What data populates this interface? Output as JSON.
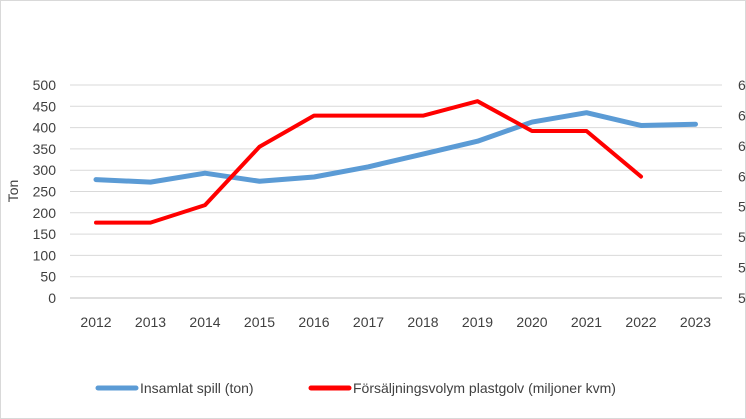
{
  "chart_data": {
    "type": "line",
    "title": "",
    "categories": [
      "2012",
      "2013",
      "2014",
      "2015",
      "2016",
      "2017",
      "2018",
      "2019",
      "2020",
      "2021",
      "2022",
      "2023"
    ],
    "ylabel": "Ton",
    "ylim": [
      0,
      500
    ],
    "yticks": [
      "0",
      "50",
      "100",
      "150",
      "200",
      "250",
      "300",
      "350",
      "400",
      "450",
      "500"
    ],
    "y2lim": [
      0,
      500
    ],
    "y2ticks": [
      "5",
      "5",
      "5",
      "5",
      "6",
      "6",
      "6",
      "6"
    ],
    "grid": true,
    "legend_position": "bottom",
    "series": [
      {
        "name": "Insamlat spill (ton)",
        "color": "#5b9bd5",
        "axis": "left",
        "values": [
          278,
          272,
          293,
          274,
          284,
          308,
          338,
          368,
          413,
          435,
          405,
          408
        ]
      },
      {
        "name": "Försäljningsvolym plastgolv (miljoner kvm)",
        "color": "#ff0000",
        "axis": "right",
        "values": [
          177,
          177,
          218,
          355,
          428,
          428,
          428,
          462,
          392,
          392,
          285,
          null
        ]
      }
    ]
  }
}
